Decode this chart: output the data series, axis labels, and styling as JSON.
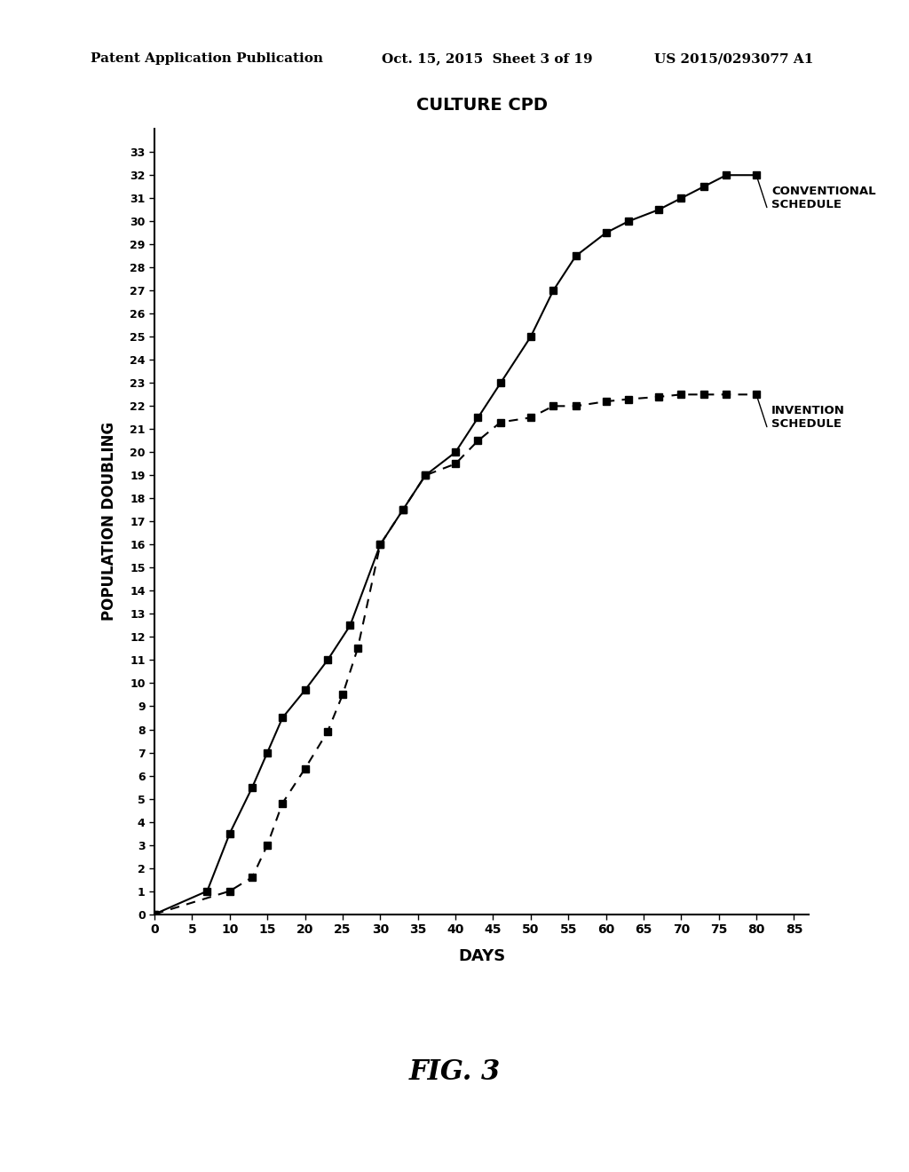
{
  "title": "CULTURE CPD",
  "xlabel": "DAYS",
  "ylabel": "POPULATION DOUBLING",
  "xlim": [
    0,
    87
  ],
  "ylim": [
    0,
    34
  ],
  "xticks": [
    0,
    5,
    10,
    15,
    20,
    25,
    30,
    35,
    40,
    45,
    50,
    55,
    60,
    65,
    70,
    75,
    80,
    85
  ],
  "yticks": [
    0,
    1,
    2,
    3,
    4,
    5,
    6,
    7,
    8,
    9,
    10,
    11,
    12,
    13,
    14,
    15,
    16,
    17,
    18,
    19,
    20,
    21,
    22,
    23,
    24,
    25,
    26,
    27,
    28,
    29,
    30,
    31,
    32,
    33
  ],
  "conventional_x": [
    0,
    7,
    10,
    13,
    15,
    17,
    20,
    23,
    26,
    30,
    33,
    36,
    40,
    43,
    46,
    50,
    53,
    56,
    60,
    63,
    67,
    70,
    73,
    76,
    80
  ],
  "conventional_y": [
    0,
    1.0,
    3.5,
    5.5,
    7.0,
    8.5,
    9.7,
    11.0,
    12.5,
    16.0,
    17.5,
    19.0,
    20.0,
    21.5,
    23.0,
    25.0,
    27.0,
    28.5,
    29.5,
    30.0,
    30.5,
    31.0,
    31.5,
    32.0,
    32.0
  ],
  "invention_x": [
    0,
    10,
    13,
    15,
    17,
    20,
    23,
    25,
    27,
    30,
    33,
    36,
    40,
    43,
    46,
    50,
    53,
    56,
    60,
    63,
    67,
    70,
    73,
    76,
    80
  ],
  "invention_y": [
    0,
    1.0,
    1.6,
    3.0,
    4.8,
    6.3,
    7.9,
    9.5,
    11.5,
    16.0,
    17.5,
    19.0,
    19.5,
    20.5,
    21.3,
    21.5,
    22.0,
    22.0,
    22.2,
    22.3,
    22.4,
    22.5,
    22.5,
    22.5,
    22.5
  ],
  "header_left": "Patent Application Publication",
  "header_center": "Oct. 15, 2015  Sheet 3 of 19",
  "header_right": "US 2015/0293077 A1",
  "fig_label": "FIG. 3",
  "background_color": "#ffffff",
  "line_color": "#000000"
}
